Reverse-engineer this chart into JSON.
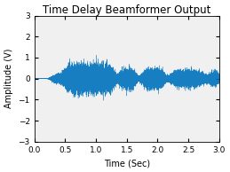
{
  "title": "Time Delay Beamformer Output",
  "xlabel": "Time (Sec)",
  "ylabel": "Amplitude (V)",
  "xlim": [
    0,
    3
  ],
  "ylim": [
    -3,
    3
  ],
  "xticks": [
    0,
    0.5,
    1,
    1.5,
    2,
    2.5,
    3
  ],
  "yticks": [
    -3,
    -2,
    -1,
    0,
    1,
    2,
    3
  ],
  "line_color": "#0072BD",
  "bg_color": "#F0F0F0",
  "fig_color": "#FFFFFF",
  "title_fontsize": 8.5,
  "label_fontsize": 7,
  "tick_fontsize": 6.5
}
